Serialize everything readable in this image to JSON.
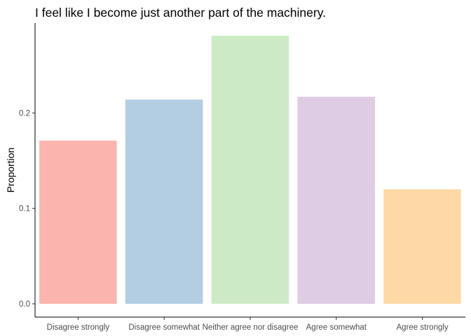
{
  "chart_data": {
    "type": "bar",
    "title": "I feel like I become just another part of the machinery.",
    "xlabel": "",
    "ylabel": "Proportion",
    "categories": [
      "Disagree strongly",
      "Disagree somewhat",
      "Neither agree nor disagree",
      "Agree somewhat",
      "Agree strongly"
    ],
    "values": [
      0.171,
      0.214,
      0.281,
      0.217,
      0.12
    ],
    "colors": [
      "#FBB4AE",
      "#B3CDE3",
      "#CCEBC5",
      "#DECBE4",
      "#FED9A6"
    ],
    "ylim": [
      0,
      0.281
    ],
    "yticks": [
      0.0,
      0.1,
      0.2
    ],
    "ytick_labels": [
      "0.0",
      "0.1",
      "0.2"
    ],
    "grid": false,
    "legend": "none"
  }
}
